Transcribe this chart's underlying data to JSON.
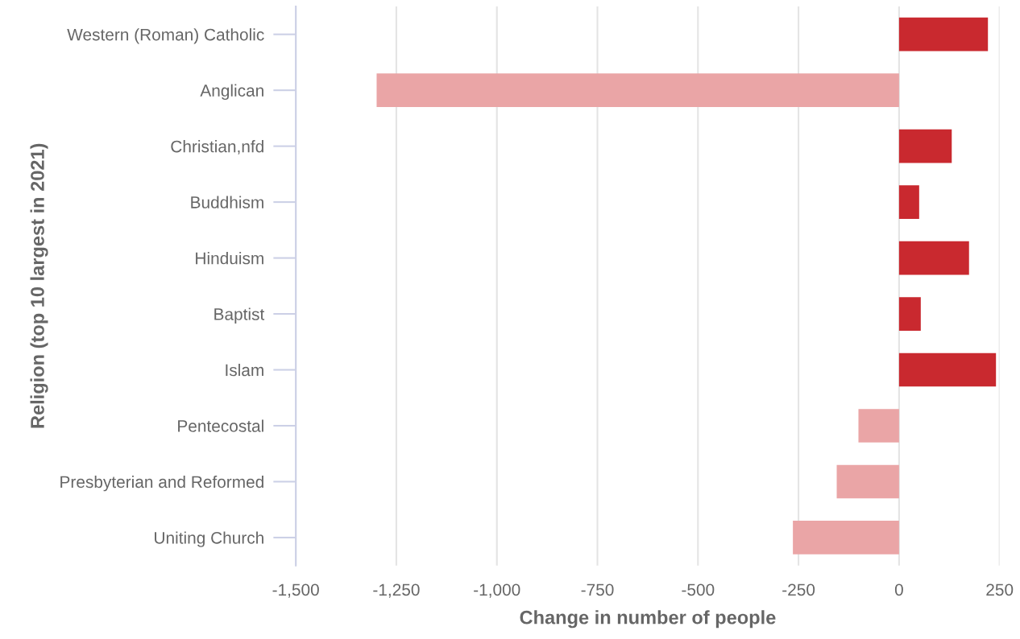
{
  "chart_data": {
    "type": "bar",
    "orientation": "horizontal",
    "categories": [
      "Western (Roman) Catholic",
      "Anglican",
      "Christian,nfd",
      "Buddhism",
      "Hinduism",
      "Baptist",
      "Islam",
      "Pentecostal",
      "Presbyterian and Reformed",
      "Uniting Church"
    ],
    "values": [
      221,
      -1299,
      131,
      50,
      174,
      54,
      241,
      -101,
      -155,
      -264
    ],
    "colors": [
      "#c9292f",
      "#eaa5a6",
      "#c9292f",
      "#c9292f",
      "#c9292f",
      "#c9292f",
      "#c9292f",
      "#eaa5a6",
      "#eaa5a6",
      "#eaa5a6"
    ],
    "xlabel": "Change in number of people",
    "ylabel": "Religion (top 10 largest in 2021)",
    "xlim": [
      -1500,
      250
    ],
    "xticks": [
      {
        "value": -1500,
        "label": "-1,500"
      },
      {
        "value": -1250,
        "label": "-1,250"
      },
      {
        "value": -1000,
        "label": "-1,000"
      },
      {
        "value": -750,
        "label": "-750"
      },
      {
        "value": -500,
        "label": "-500"
      },
      {
        "value": -250,
        "label": "-250"
      },
      0,
      250
    ],
    "grid": "x",
    "legend": false
  }
}
